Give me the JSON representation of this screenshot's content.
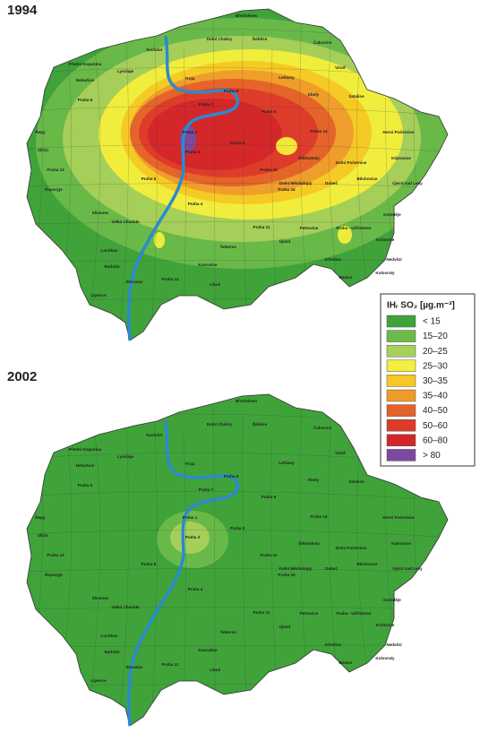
{
  "maps": [
    {
      "title": "1994"
    },
    {
      "title": "2002"
    }
  ],
  "legend": {
    "title": "IHᵣ SO₂ [µg.m⁻³]",
    "items": [
      {
        "label": "< 15",
        "color": "#3fa33a"
      },
      {
        "label": "15–20",
        "color": "#6cba4a"
      },
      {
        "label": "20–25",
        "color": "#a9d05a"
      },
      {
        "label": "25–30",
        "color": "#f4ee3c"
      },
      {
        "label": "30–35",
        "color": "#f5c824"
      },
      {
        "label": "35–40",
        "color": "#ee9b2c"
      },
      {
        "label": "40–50",
        "color": "#e4612a"
      },
      {
        "label": "50–60",
        "color": "#dd3a2a"
      },
      {
        "label": "60–80",
        "color": "#d2262a"
      },
      {
        "label": "> 80",
        "color": "#7b4aa0"
      }
    ]
  },
  "places": [
    "Březiněves",
    "Dolní Chabry",
    "Ďáblice",
    "Čakovice",
    "Suchdol",
    "Vinoř",
    "Přední Kopanina",
    "Lysolaje",
    "Troja",
    "Letňany",
    "Nebušice",
    "Praha 8",
    "Kbely",
    "Satalice",
    "Praha 6",
    "Praha 7",
    "Praha 9",
    "Řepy",
    "Praha 1",
    "Praha 14",
    "Horní Počernice",
    "Zličín",
    "Praha 2",
    "Praha 3",
    "Klánovice",
    "Štěrboholy",
    "Dolní Počernice",
    "Běchovice",
    "Praha 13",
    "Praha 10",
    "Dolní Měcholupy",
    "Řeporyje",
    "Praha 5",
    "Praha 15",
    "Dubeč",
    "Újezd nad Lesy",
    "Koloděje",
    "Praha 4",
    "Slivenec",
    "Velká Chuchle",
    "Praha 11",
    "Petrovice",
    "Praha - Uhříněves",
    "Lochkov",
    "Újezd",
    "Křeslice",
    "Královice",
    "Šeberov",
    "Radotín",
    "Kunratice",
    "Benice",
    "Nedvězí",
    "Zbraslav",
    "Praha 12",
    "Libuš",
    "Kolovraty",
    "Lipence"
  ]
}
